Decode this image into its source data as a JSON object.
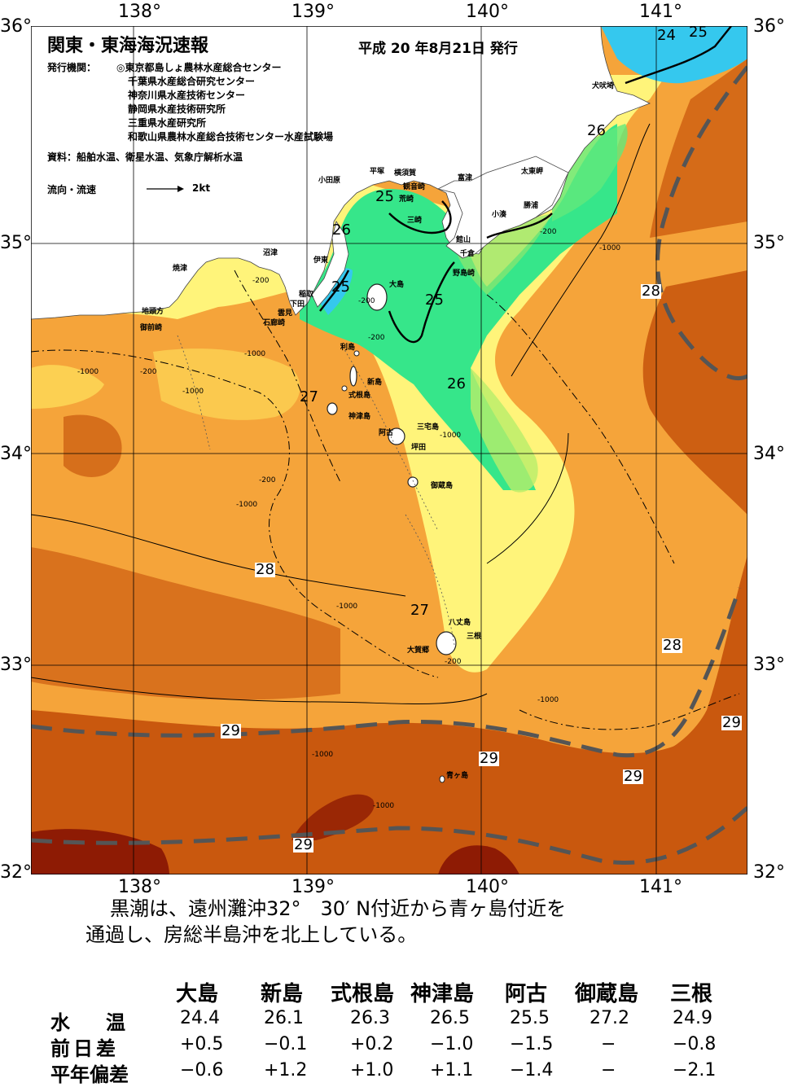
{
  "map": {
    "title": "関東・東海海況速報",
    "issued": "平成 20 年8月21日 発行",
    "org_label": "発行機関：",
    "orgs": [
      "◎東京都島しょ農林水産総合センター",
      "千葉県水産総合研究センター",
      "神奈川県水産技術センター",
      "静岡県水産技術研究所",
      "三重県水産研究所",
      "和歌山県農林水産総合技術センター水産試験場"
    ],
    "source": "資料：船舶水温、衛星水温、気象庁解析水温",
    "legend_label": "流向・流速",
    "legend_speed": "2kt",
    "lon_labels": [
      "138°",
      "139°",
      "140°",
      "141°"
    ],
    "lat_labels": [
      "36°",
      "35°",
      "34°",
      "33°",
      "32°"
    ],
    "colors": {
      "cold": "#35c8ee",
      "cool": "#36e68a",
      "mild": "#fff47a",
      "warm": "#f5a43a",
      "hot": "#c9580e",
      "hottest": "#8e1b04"
    },
    "isotherm_labels": [
      "24",
      "25",
      "26",
      "25",
      "26",
      "25",
      "25",
      "26",
      "27",
      "28",
      "28",
      "27",
      "28",
      "29",
      "29",
      "29",
      "29",
      "29"
    ],
    "depth_labels": [
      "-200",
      "-1000",
      "-200",
      "-1000",
      "-200",
      "-1000",
      "-1000",
      "-200",
      "-200",
      "-1000",
      "-200",
      "-1000",
      "-1000",
      "-1000",
      "-1000",
      "-200",
      "-1000"
    ],
    "places": [
      "犬吠埼",
      "太東岬",
      "勝浦",
      "小湊",
      "富津",
      "千倉",
      "館山",
      "野島崎",
      "横須賀",
      "観音崎",
      "荒崎",
      "三崎",
      "平塚",
      "小田原",
      "沼津",
      "伊東",
      "稲取",
      "下田",
      "雲見",
      "石廊崎",
      "焼津",
      "地頭方",
      "御前崎",
      "大島",
      "利島",
      "新島",
      "式根島",
      "神津島",
      "三宅島",
      "阿古",
      "坪田",
      "御蔵島",
      "八丈島",
      "三根",
      "大賀郷",
      "青ヶ島"
    ]
  },
  "summary": {
    "line1": "黒潮は、遠州灘沖32°　30′ N付近から青ヶ島付近を",
    "line2": "通過し、房総半島沖を北上している。"
  },
  "table": {
    "columns": [
      "大島",
      "新島",
      "式根島",
      "神津島",
      "阿古",
      "御蔵島",
      "三根"
    ],
    "rows": [
      {
        "label": "水　温",
        "values": [
          "24.4",
          "26.1",
          "26.3",
          "26.5",
          "25.5",
          "27.2",
          "24.9"
        ]
      },
      {
        "label": "前日差",
        "values": [
          "+0.5",
          "−0.1",
          "+0.2",
          "−1.0",
          "−1.5",
          "−",
          "−0.8"
        ]
      },
      {
        "label": "平年偏差",
        "values": [
          "−0.6",
          "+1.2",
          "+1.0",
          "+1.1",
          "−1.4",
          "−",
          "−2.1"
        ]
      }
    ]
  }
}
